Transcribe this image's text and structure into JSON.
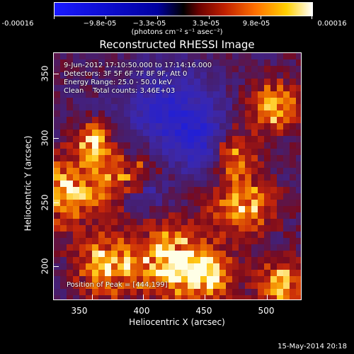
{
  "colorbar": {
    "labels": [
      "-0.00016",
      "−9.8e-05",
      "−3.3e-05",
      "3.3e-05",
      "9.8e-05",
      "0.00016"
    ],
    "units": "(photons cm⁻² s⁻¹ asec⁻²)"
  },
  "title": "Reconstructed RHESSI Image",
  "info": {
    "line1": "9-Jun-2012 17:10:50.000 to 17:14:16.000",
    "line2": "Detectors: 3F 5F 6F 7F 8F 9F, Att 0",
    "line3": "Energy Range: 25.0 - 50.0 keV",
    "line4": "Clean    Total counts: 3.46E+03",
    "peak": "Position of Peak = [444,199]"
  },
  "axes": {
    "xlabel": "Heliocentric X (arcsec)",
    "ylabel": "Heliocentric Y (arcsec)",
    "xticks": [
      "350",
      "400",
      "450",
      "500"
    ],
    "yticks": [
      "200",
      "250",
      "300",
      "350"
    ]
  },
  "footer_date": "15-May-2014 20:18"
}
